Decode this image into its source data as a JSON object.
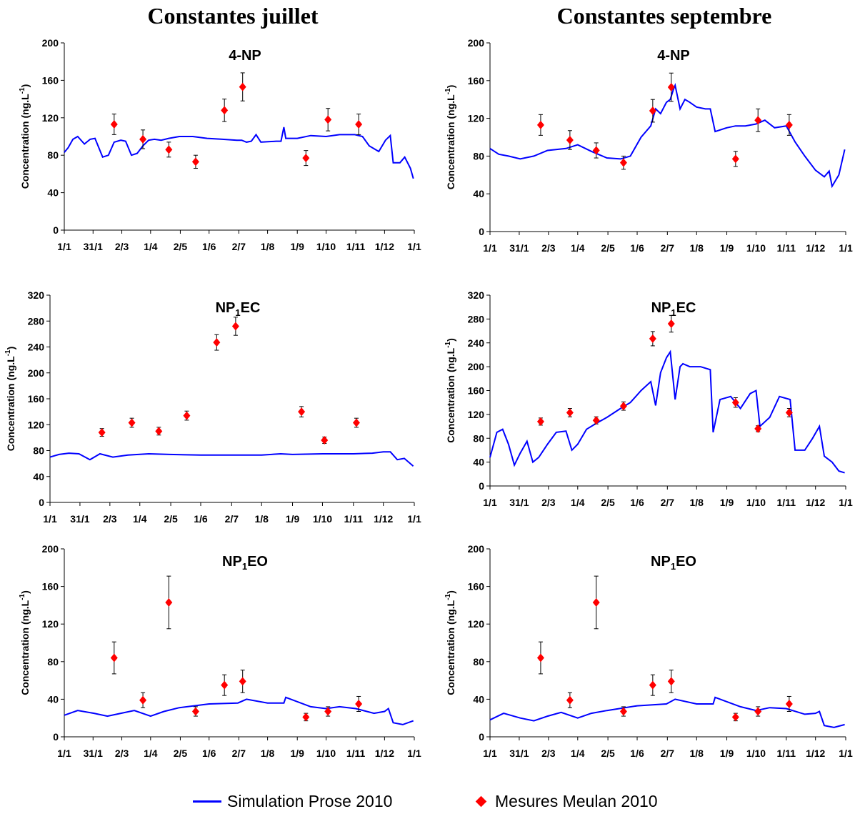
{
  "column_titles": [
    "Constantes juillet",
    "Constantes septembre"
  ],
  "legend": {
    "simulation": "Simulation Prose 2010",
    "measures": "Mesures Meulan 2010",
    "colors": {
      "simulation": "#0000ff",
      "measures": "#ff0000"
    }
  },
  "chart_data": [
    {
      "type": "line",
      "panel": "Constantes juillet",
      "title": "4-NP",
      "ylabel": "Concentration (ng.L-1)",
      "ylim": [
        0,
        200
      ],
      "yticks": [
        0,
        40,
        80,
        120,
        160,
        200
      ],
      "xlim": [
        "2010-01-01",
        "2011-01-01"
      ],
      "xtick_labels": [
        "1/1",
        "31/1",
        "2/3",
        "1/4",
        "2/5",
        "1/6",
        "2/7",
        "1/8",
        "1/9",
        "1/10",
        "1/11",
        "1/12",
        "1/1"
      ],
      "xtick_dates": [
        "2010-01-01",
        "2010-01-31",
        "2010-03-02",
        "2010-04-01",
        "2010-05-02",
        "2010-06-01",
        "2010-07-02",
        "2010-08-01",
        "2010-09-01",
        "2010-10-01",
        "2010-11-01",
        "2010-12-01",
        "2011-01-01"
      ],
      "series": [
        {
          "name": "Simulation Prose 2010",
          "kind": "line",
          "x": [
            "2010-01-01",
            "2010-01-05",
            "2010-01-10",
            "2010-01-15",
            "2010-01-22",
            "2010-01-28",
            "2010-02-02",
            "2010-02-10",
            "2010-02-16",
            "2010-02-22",
            "2010-03-01",
            "2010-03-06",
            "2010-03-12",
            "2010-03-18",
            "2010-03-24",
            "2010-03-30",
            "2010-04-05",
            "2010-04-12",
            "2010-04-20",
            "2010-05-01",
            "2010-05-15",
            "2010-05-30",
            "2010-06-15",
            "2010-06-30",
            "2010-07-05",
            "2010-07-10",
            "2010-07-15",
            "2010-07-20",
            "2010-07-25",
            "2010-08-10",
            "2010-08-15",
            "2010-08-18",
            "2010-08-20",
            "2010-09-01",
            "2010-09-15",
            "2010-10-01",
            "2010-10-15",
            "2010-10-31",
            "2010-11-08",
            "2010-11-15",
            "2010-11-25",
            "2010-12-02",
            "2010-12-07",
            "2010-12-10",
            "2010-12-17",
            "2010-12-22",
            "2010-12-28",
            "2010-12-31"
          ],
          "y": [
            83,
            88,
            97,
            100,
            92,
            97,
            98,
            78,
            80,
            94,
            96,
            95,
            80,
            82,
            90,
            96,
            97,
            96,
            98,
            100,
            100,
            98,
            97,
            96,
            96,
            94,
            95,
            102,
            94,
            95,
            95,
            110,
            98,
            98,
            101,
            100,
            102,
            102,
            100,
            90,
            84,
            96,
            101,
            72,
            72,
            78,
            66,
            55
          ]
        },
        {
          "name": "Mesures Meulan 2010",
          "kind": "scatter",
          "x": [
            "2010-02-22",
            "2010-03-24",
            "2010-04-20",
            "2010-05-18",
            "2010-06-17",
            "2010-07-06",
            "2010-09-10",
            "2010-10-03",
            "2010-11-04"
          ],
          "y": [
            113,
            97,
            86,
            73,
            128,
            153,
            77,
            118,
            113
          ],
          "err": [
            11,
            10,
            8,
            7,
            12,
            15,
            8,
            12,
            11
          ]
        }
      ]
    },
    {
      "type": "line",
      "panel": "Constantes septembre",
      "title": "4-NP",
      "ylabel": "Concentration (ng.L-1)",
      "ylim": [
        0,
        200
      ],
      "yticks": [
        0,
        40,
        80,
        120,
        160,
        200
      ],
      "xlim": [
        "2010-01-01",
        "2011-01-01"
      ],
      "xtick_labels": [
        "1/1",
        "31/1",
        "2/3",
        "1/4",
        "2/5",
        "1/6",
        "2/7",
        "1/8",
        "1/9",
        "1/10",
        "1/11",
        "1/12",
        "1/1"
      ],
      "xtick_dates": [
        "2010-01-01",
        "2010-01-31",
        "2010-03-02",
        "2010-04-01",
        "2010-05-02",
        "2010-06-01",
        "2010-07-02",
        "2010-08-01",
        "2010-09-01",
        "2010-10-01",
        "2010-11-01",
        "2010-12-01",
        "2011-01-01"
      ],
      "series": [
        {
          "name": "Simulation Prose 2010",
          "kind": "line",
          "x": [
            "2010-01-01",
            "2010-01-10",
            "2010-01-20",
            "2010-02-01",
            "2010-02-15",
            "2010-03-01",
            "2010-03-20",
            "2010-04-01",
            "2010-04-15",
            "2010-05-01",
            "2010-05-15",
            "2010-05-25",
            "2010-06-05",
            "2010-06-15",
            "2010-06-20",
            "2010-06-25",
            "2010-07-01",
            "2010-07-05",
            "2010-07-08",
            "2010-07-10",
            "2010-07-15",
            "2010-07-20",
            "2010-07-25",
            "2010-08-01",
            "2010-08-10",
            "2010-08-15",
            "2010-08-20",
            "2010-09-01",
            "2010-09-10",
            "2010-09-20",
            "2010-10-01",
            "2010-10-10",
            "2010-10-20",
            "2010-11-01",
            "2010-11-10",
            "2010-11-20",
            "2010-12-01",
            "2010-12-10",
            "2010-12-15",
            "2010-12-18",
            "2010-12-25",
            "2010-12-31"
          ],
          "y": [
            88,
            82,
            80,
            77,
            80,
            86,
            88,
            92,
            85,
            78,
            77,
            80,
            100,
            112,
            130,
            125,
            137,
            140,
            150,
            155,
            130,
            140,
            137,
            132,
            130,
            130,
            106,
            110,
            112,
            112,
            114,
            118,
            110,
            112,
            95,
            80,
            65,
            58,
            64,
            48,
            60,
            87
          ]
        },
        {
          "name": "Mesures Meulan 2010",
          "kind": "scatter",
          "x": [
            "2010-02-22",
            "2010-03-24",
            "2010-04-20",
            "2010-05-18",
            "2010-06-17",
            "2010-07-06",
            "2010-09-10",
            "2010-10-03",
            "2010-11-04"
          ],
          "y": [
            113,
            97,
            86,
            73,
            128,
            153,
            77,
            118,
            113
          ],
          "err": [
            11,
            10,
            8,
            7,
            12,
            15,
            8,
            12,
            11
          ]
        }
      ]
    },
    {
      "type": "line",
      "panel": "Constantes juillet",
      "title": "NP1EC",
      "ylabel": "Concentration (ng.L-1)",
      "ylim": [
        0,
        320
      ],
      "yticks": [
        0,
        40,
        80,
        120,
        160,
        200,
        240,
        280,
        320
      ],
      "xlim": [
        "2010-01-01",
        "2011-01-01"
      ],
      "xtick_labels": [
        "1/1",
        "31/1",
        "2/3",
        "1/4",
        "2/5",
        "1/6",
        "2/7",
        "1/8",
        "1/9",
        "1/10",
        "1/11",
        "1/12",
        "1/1"
      ],
      "xtick_dates": [
        "2010-01-01",
        "2010-01-31",
        "2010-03-02",
        "2010-04-01",
        "2010-05-02",
        "2010-06-01",
        "2010-07-02",
        "2010-08-01",
        "2010-09-01",
        "2010-10-01",
        "2010-11-01",
        "2010-12-01",
        "2011-01-01"
      ],
      "series": [
        {
          "name": "Simulation Prose 2010",
          "kind": "line",
          "x": [
            "2010-01-01",
            "2010-01-10",
            "2010-01-20",
            "2010-01-30",
            "2010-02-10",
            "2010-02-20",
            "2010-03-05",
            "2010-03-20",
            "2010-04-10",
            "2010-05-01",
            "2010-06-01",
            "2010-07-01",
            "2010-08-01",
            "2010-08-20",
            "2010-09-01",
            "2010-10-01",
            "2010-11-01",
            "2010-11-20",
            "2010-12-01",
            "2010-12-08",
            "2010-12-15",
            "2010-12-22",
            "2010-12-31"
          ],
          "y": [
            70,
            74,
            76,
            75,
            66,
            75,
            70,
            73,
            75,
            74,
            73,
            73,
            73,
            75,
            74,
            75,
            75,
            76,
            78,
            78,
            66,
            68,
            56
          ]
        },
        {
          "name": "Mesures Meulan 2010",
          "kind": "scatter",
          "x": [
            "2010-02-22",
            "2010-03-24",
            "2010-04-20",
            "2010-05-18",
            "2010-06-17",
            "2010-07-06",
            "2010-09-10",
            "2010-10-03",
            "2010-11-04"
          ],
          "y": [
            108,
            123,
            110,
            134,
            247,
            272,
            140,
            96,
            123
          ],
          "err": [
            6,
            7,
            6,
            7,
            12,
            14,
            8,
            5,
            7
          ]
        }
      ]
    },
    {
      "type": "line",
      "panel": "Constantes septembre",
      "title": "NP1EC",
      "ylabel": "Concentration (ng.L-1)",
      "ylim": [
        0,
        320
      ],
      "yticks": [
        0,
        40,
        80,
        120,
        160,
        200,
        240,
        280,
        320
      ],
      "xlim": [
        "2010-01-01",
        "2011-01-01"
      ],
      "xtick_labels": [
        "1/1",
        "31/1",
        "2/3",
        "1/4",
        "2/5",
        "1/6",
        "2/7",
        "1/8",
        "1/9",
        "1/10",
        "1/11",
        "1/12",
        "1/1"
      ],
      "xtick_dates": [
        "2010-01-01",
        "2010-01-31",
        "2010-03-02",
        "2010-04-01",
        "2010-05-02",
        "2010-06-01",
        "2010-07-02",
        "2010-08-01",
        "2010-09-01",
        "2010-10-01",
        "2010-11-01",
        "2010-12-01",
        "2011-01-01"
      ],
      "series": [
        {
          "name": "Simulation Prose 2010",
          "kind": "line",
          "x": [
            "2010-01-01",
            "2010-01-08",
            "2010-01-14",
            "2010-01-20",
            "2010-01-26",
            "2010-02-01",
            "2010-02-08",
            "2010-02-14",
            "2010-02-20",
            "2010-03-01",
            "2010-03-10",
            "2010-03-20",
            "2010-03-26",
            "2010-04-01",
            "2010-04-10",
            "2010-04-20",
            "2010-05-01",
            "2010-05-15",
            "2010-05-25",
            "2010-06-05",
            "2010-06-15",
            "2010-06-20",
            "2010-06-25",
            "2010-07-01",
            "2010-07-05",
            "2010-07-10",
            "2010-07-15",
            "2010-07-18",
            "2010-07-25",
            "2010-08-05",
            "2010-08-15",
            "2010-08-18",
            "2010-08-25",
            "2010-09-05",
            "2010-09-15",
            "2010-09-25",
            "2010-10-01",
            "2010-10-05",
            "2010-10-15",
            "2010-10-25",
            "2010-11-05",
            "2010-11-10",
            "2010-11-20",
            "2010-11-28",
            "2010-12-05",
            "2010-12-10",
            "2010-12-18",
            "2010-12-25",
            "2010-12-31"
          ],
          "y": [
            48,
            90,
            95,
            70,
            35,
            55,
            75,
            40,
            48,
            70,
            90,
            92,
            60,
            70,
            95,
            105,
            115,
            130,
            140,
            160,
            175,
            135,
            190,
            215,
            225,
            145,
            200,
            205,
            200,
            200,
            195,
            90,
            145,
            150,
            130,
            155,
            160,
            100,
            115,
            150,
            145,
            60,
            60,
            80,
            100,
            50,
            40,
            25,
            22
          ]
        },
        {
          "name": "Mesures Meulan 2010",
          "kind": "scatter",
          "x": [
            "2010-02-22",
            "2010-03-24",
            "2010-04-20",
            "2010-05-18",
            "2010-06-17",
            "2010-07-06",
            "2010-09-10",
            "2010-10-03",
            "2010-11-04"
          ],
          "y": [
            108,
            123,
            110,
            134,
            247,
            272,
            140,
            96,
            123
          ],
          "err": [
            6,
            7,
            6,
            7,
            12,
            14,
            8,
            5,
            7
          ]
        }
      ]
    },
    {
      "type": "line",
      "panel": "Constantes juillet",
      "title": "NP1EO",
      "ylabel": "Concentration (ng.L-1)",
      "ylim": [
        0,
        200
      ],
      "yticks": [
        0,
        40,
        80,
        120,
        160,
        200
      ],
      "xlim": [
        "2010-01-01",
        "2011-01-01"
      ],
      "xtick_labels": [
        "1/1",
        "31/1",
        "2/3",
        "1/4",
        "2/5",
        "1/6",
        "2/7",
        "1/8",
        "1/9",
        "1/10",
        "1/11",
        "1/12",
        "1/1"
      ],
      "xtick_dates": [
        "2010-01-01",
        "2010-01-31",
        "2010-03-02",
        "2010-04-01",
        "2010-05-02",
        "2010-06-01",
        "2010-07-02",
        "2010-08-01",
        "2010-09-01",
        "2010-10-01",
        "2010-11-01",
        "2010-12-01",
        "2011-01-01"
      ],
      "series": [
        {
          "name": "Simulation Prose 2010",
          "kind": "line",
          "x": [
            "2010-01-01",
            "2010-01-15",
            "2010-02-01",
            "2010-02-15",
            "2010-03-01",
            "2010-03-15",
            "2010-04-01",
            "2010-04-15",
            "2010-05-01",
            "2010-06-01",
            "2010-07-01",
            "2010-07-10",
            "2010-08-01",
            "2010-08-18",
            "2010-08-20",
            "2010-09-15",
            "2010-10-01",
            "2010-10-15",
            "2010-11-01",
            "2010-11-20",
            "2010-12-01",
            "2010-12-05",
            "2010-12-10",
            "2010-12-20",
            "2010-12-31"
          ],
          "y": [
            23,
            28,
            25,
            22,
            25,
            28,
            22,
            27,
            31,
            35,
            36,
            40,
            36,
            36,
            42,
            32,
            30,
            32,
            30,
            25,
            27,
            30,
            15,
            13,
            17
          ]
        },
        {
          "name": "Mesures Meulan 2010",
          "kind": "scatter",
          "x": [
            "2010-02-22",
            "2010-03-24",
            "2010-04-20",
            "2010-05-18",
            "2010-06-17",
            "2010-07-06",
            "2010-09-10",
            "2010-10-03",
            "2010-11-04"
          ],
          "y": [
            84,
            39,
            143,
            27,
            55,
            59,
            21,
            27,
            35
          ],
          "err": [
            17,
            8,
            28,
            5,
            11,
            12,
            4,
            5,
            8
          ]
        }
      ]
    },
    {
      "type": "line",
      "panel": "Constantes septembre",
      "title": "NP1EO",
      "ylabel": "Concentration (ng.L-1)",
      "ylim": [
        0,
        200
      ],
      "yticks": [
        0,
        40,
        80,
        120,
        160,
        200
      ],
      "xlim": [
        "2010-01-01",
        "2011-01-01"
      ],
      "xtick_labels": [
        "1/1",
        "31/1",
        "2/3",
        "1/4",
        "2/5",
        "1/6",
        "2/7",
        "1/8",
        "1/9",
        "1/10",
        "1/11",
        "1/12",
        "1/1"
      ],
      "xtick_dates": [
        "2010-01-01",
        "2010-01-31",
        "2010-03-02",
        "2010-04-01",
        "2010-05-02",
        "2010-06-01",
        "2010-07-02",
        "2010-08-01",
        "2010-09-01",
        "2010-10-01",
        "2010-11-01",
        "2010-12-01",
        "2011-01-01"
      ],
      "series": [
        {
          "name": "Simulation Prose 2010",
          "kind": "line",
          "x": [
            "2010-01-01",
            "2010-01-15",
            "2010-02-01",
            "2010-02-15",
            "2010-03-01",
            "2010-03-15",
            "2010-04-01",
            "2010-04-15",
            "2010-05-01",
            "2010-06-01",
            "2010-07-01",
            "2010-07-10",
            "2010-08-01",
            "2010-08-18",
            "2010-08-20",
            "2010-09-15",
            "2010-10-01",
            "2010-10-15",
            "2010-11-01",
            "2010-11-20",
            "2010-12-01",
            "2010-12-05",
            "2010-12-10",
            "2010-12-20",
            "2010-12-31"
          ],
          "y": [
            18,
            25,
            20,
            17,
            22,
            26,
            20,
            25,
            28,
            33,
            35,
            40,
            35,
            35,
            42,
            32,
            28,
            31,
            30,
            24,
            25,
            27,
            12,
            10,
            13
          ]
        },
        {
          "name": "Mesures Meulan 2010",
          "kind": "scatter",
          "x": [
            "2010-02-22",
            "2010-03-24",
            "2010-04-20",
            "2010-05-18",
            "2010-06-17",
            "2010-07-06",
            "2010-09-10",
            "2010-10-03",
            "2010-11-04"
          ],
          "y": [
            84,
            39,
            143,
            27,
            55,
            59,
            21,
            27,
            35
          ],
          "err": [
            17,
            8,
            28,
            5,
            11,
            12,
            4,
            5,
            8
          ]
        }
      ]
    }
  ]
}
